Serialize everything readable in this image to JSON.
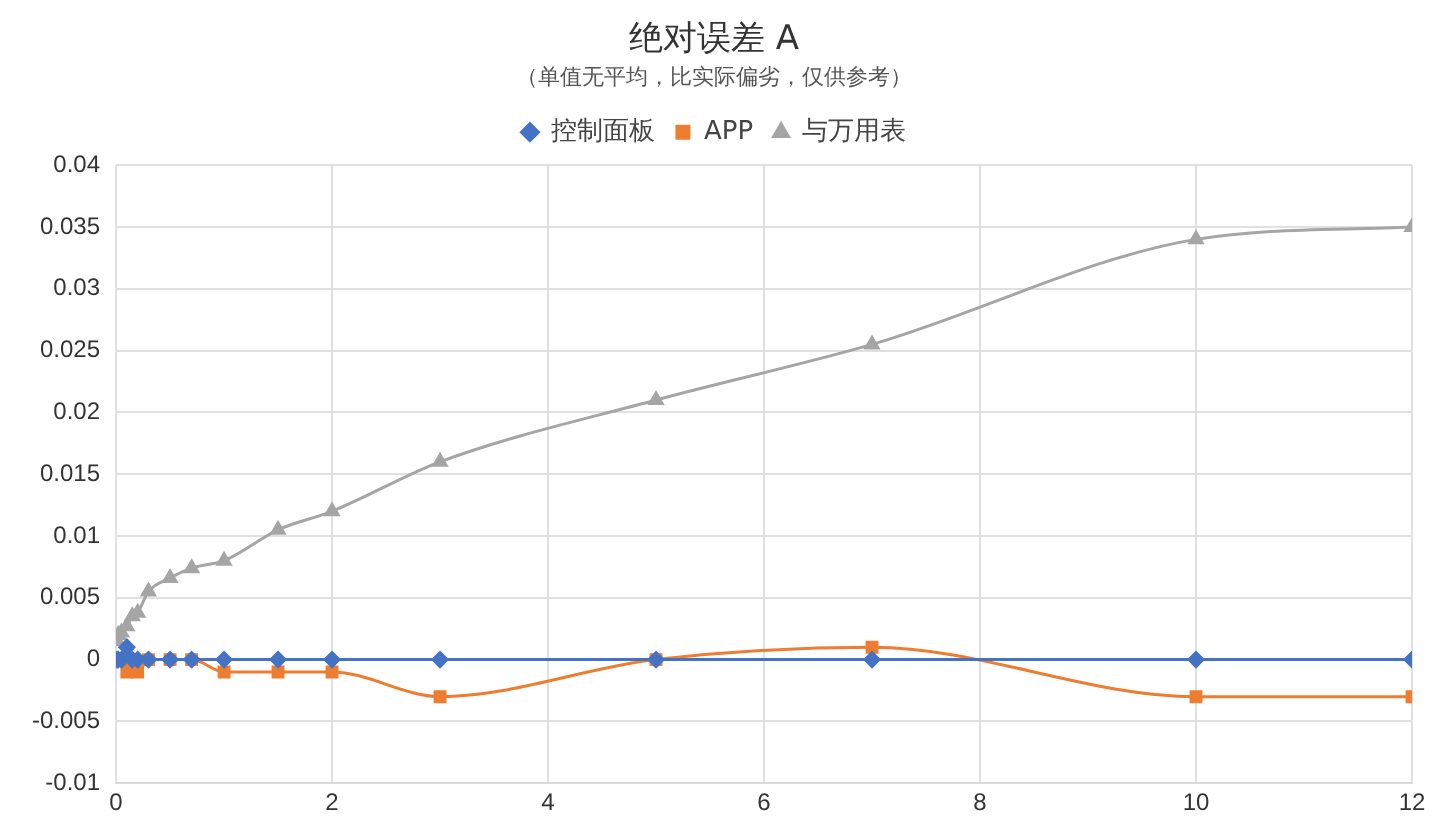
{
  "chart_data": {
    "type": "line",
    "title": "绝对误差 A",
    "subtitle": "（单值无平均，比实际偏劣，仅供参考）",
    "legend": "top",
    "grid": true,
    "xlim": [
      0,
      12
    ],
    "xticks": [
      0,
      2,
      4,
      6,
      8,
      10,
      12
    ],
    "ylim": [
      -0.01,
      0.04
    ],
    "yticks": [
      -0.01,
      -0.005,
      0,
      0.005,
      0.01,
      0.015,
      0.02,
      0.025,
      0.03,
      0.035,
      0.04
    ],
    "x": [
      0.01,
      0.02,
      0.05,
      0.1,
      0.15,
      0.2,
      0.3,
      0.5,
      0.7,
      1,
      1.5,
      2,
      3,
      5,
      7,
      10,
      12
    ],
    "series": [
      {
        "name": "控制面板",
        "color": "#4472c4",
        "marker": "diamond",
        "values": [
          0,
          0,
          0,
          0.001,
          0,
          0,
          0,
          0,
          0,
          0,
          0,
          0,
          0,
          0,
          0,
          0,
          0
        ]
      },
      {
        "name": "APP",
        "color": "#ed7d31",
        "marker": "square",
        "values": [
          0,
          null,
          0,
          -0.001,
          0,
          -0.001,
          0,
          0,
          0,
          -0.001,
          -0.001,
          -0.001,
          -0.003,
          0,
          0.001,
          -0.003,
          -0.003
        ]
      },
      {
        "name": "与万用表",
        "color": "#a5a5a5",
        "marker": "triangle",
        "values": [
          0.0015,
          0.002,
          0.0022,
          0.0027,
          0.0035,
          0.0038,
          0.0055,
          0.0066,
          0.0074,
          0.008,
          0.0105,
          0.012,
          0.016,
          0.021,
          0.0255,
          0.034,
          0.035
        ]
      }
    ]
  }
}
